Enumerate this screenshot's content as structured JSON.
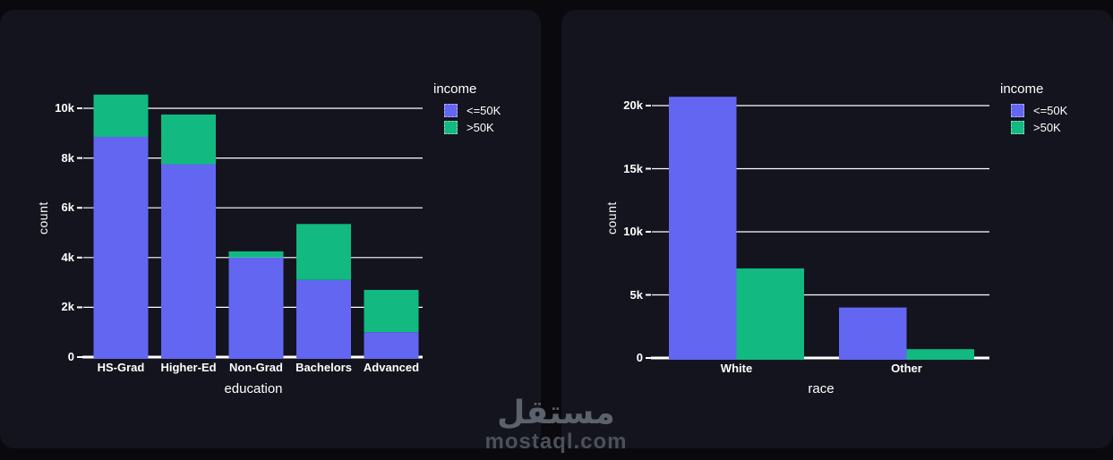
{
  "colors": {
    "page_bg": "#0a0a0e",
    "card_bg": "#13141d",
    "text": "#ffffff",
    "grid": "#ffffff",
    "series_le50k": "#6366f1",
    "series_gt50k": "#12b981",
    "watermark_arabic": "#5d616b",
    "watermark_latin": "#4c505a"
  },
  "legend": {
    "title": "income",
    "items": [
      {
        "label": "<=50K",
        "color": "#6366f1"
      },
      {
        "label": ">50K",
        "color": "#12b981"
      }
    ]
  },
  "watermark": {
    "arabic": "مستقل",
    "domain": "mostaql.com"
  },
  "chart_data": [
    {
      "type": "bar",
      "variant": "stacked",
      "title": "",
      "xlabel": "education",
      "ylabel": "count",
      "categories": [
        "HS-Grad",
        "Higher-Ed",
        "Non-Grad",
        "Bachelors",
        "Advanced"
      ],
      "series": [
        {
          "name": "<=50K",
          "color": "#6366f1",
          "values": [
            8850,
            7750,
            4000,
            3100,
            1000
          ]
        },
        {
          "name": ">50K",
          "color": "#12b981",
          "values": [
            1700,
            2000,
            250,
            2250,
            1700
          ]
        }
      ],
      "totals": [
        10550,
        9750,
        4250,
        5350,
        2700
      ],
      "ylim": [
        0,
        11000
      ],
      "yticks": [
        {
          "value": 0,
          "label": "0"
        },
        {
          "value": 2000,
          "label": "2k"
        },
        {
          "value": 4000,
          "label": "4k"
        },
        {
          "value": 6000,
          "label": "6k"
        },
        {
          "value": 8000,
          "label": "8k"
        },
        {
          "value": 10000,
          "label": "10k"
        }
      ],
      "grid": "horizontal",
      "legend_position": "right-top"
    },
    {
      "type": "bar",
      "variant": "grouped",
      "title": "",
      "xlabel": "race",
      "ylabel": "count",
      "categories": [
        "White",
        "Other"
      ],
      "series": [
        {
          "name": "<=50K",
          "color": "#6366f1",
          "values": [
            20700,
            4000
          ]
        },
        {
          "name": ">50K",
          "color": "#12b981",
          "values": [
            7100,
            700
          ]
        }
      ],
      "ylim": [
        0,
        21500
      ],
      "yticks": [
        {
          "value": 0,
          "label": "0"
        },
        {
          "value": 5000,
          "label": "5k"
        },
        {
          "value": 10000,
          "label": "10k"
        },
        {
          "value": 15000,
          "label": "15k"
        },
        {
          "value": 20000,
          "label": "20k"
        }
      ],
      "grid": "horizontal",
      "legend_position": "right-top"
    }
  ]
}
